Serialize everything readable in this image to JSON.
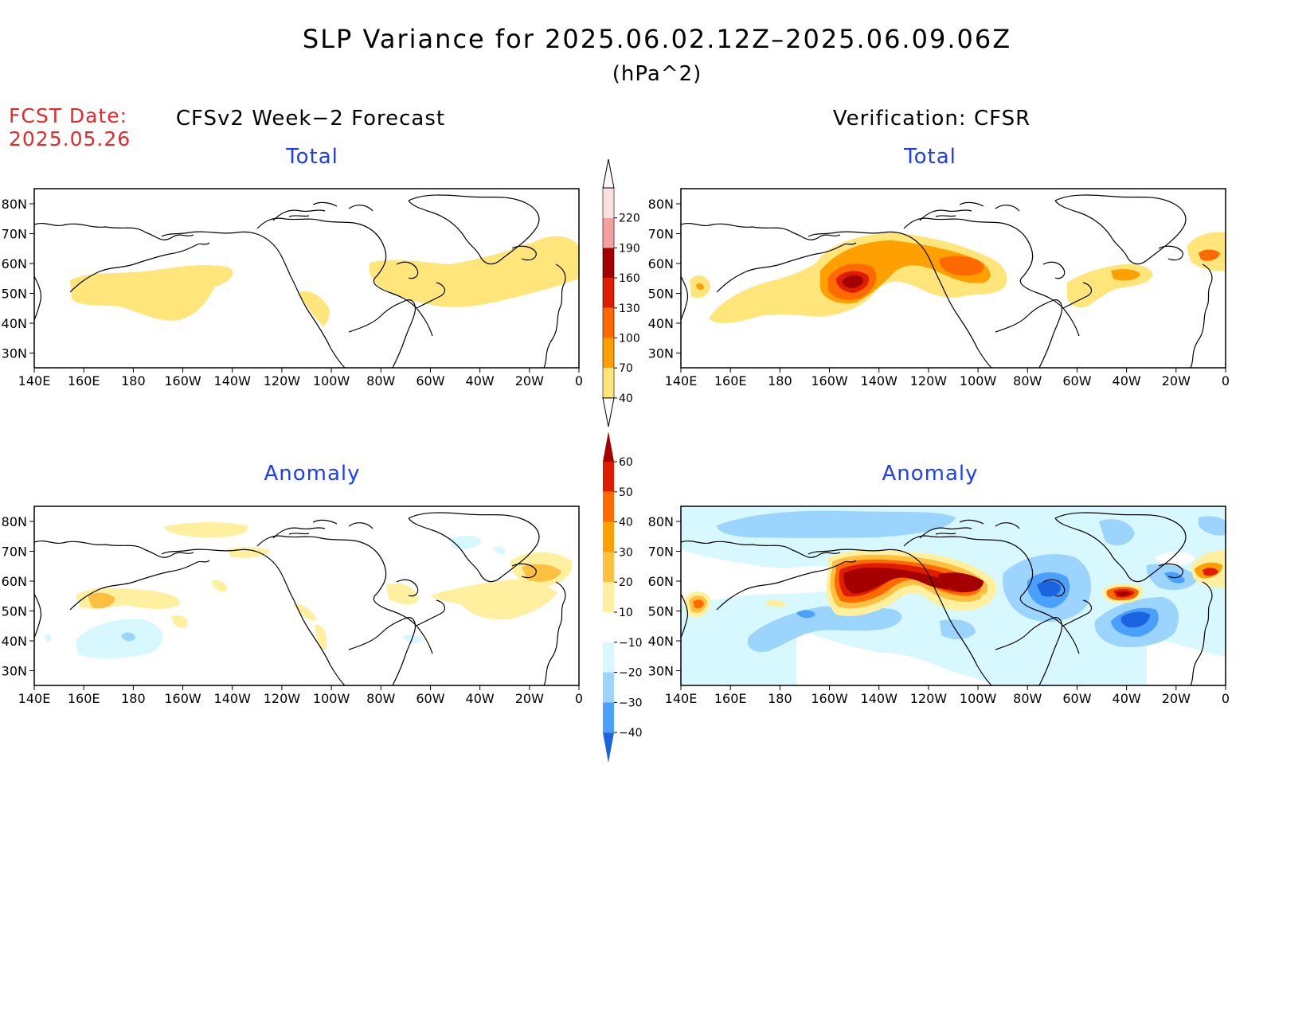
{
  "header": {
    "title": "SLP Variance for 2025.06.02.12Z–2025.06.09.06Z",
    "units": "(hPa^2)",
    "fcst_label": "FCST Date:",
    "fcst_date": "2025.05.26"
  },
  "columns": {
    "left": "CFSv2 Week−2 Forecast",
    "right": "Verification: CFSR"
  },
  "panels": {
    "forecast_total": "Total",
    "verification_total": "Total",
    "forecast_anomaly": "Anomaly",
    "verification_anomaly": "Anomaly"
  },
  "axes": {
    "lon_labels": [
      "140E",
      "160E",
      "180",
      "160W",
      "140W",
      "120W",
      "100W",
      "80W",
      "60W",
      "40W",
      "20W",
      "0"
    ],
    "lat_labels": [
      "80N",
      "70N",
      "60N",
      "50N",
      "40N",
      "30N"
    ]
  },
  "colorbars": {
    "total": {
      "levels": [
        "40",
        "70",
        "100",
        "130",
        "160",
        "190",
        "220"
      ],
      "colors": [
        "#ffe57a",
        "#ffa000",
        "#ff6a00",
        "#e01c00",
        "#a50000",
        "#f4a0a0",
        "#fde0e0"
      ]
    },
    "anomaly": {
      "levels": [
        "60",
        "50",
        "40",
        "30",
        "20",
        "10",
        "−10",
        "−20",
        "−30",
        "−40"
      ],
      "colors_pos": [
        "#fff0a0",
        "#ffc040",
        "#ffa000",
        "#ff6a00",
        "#e01c00",
        "#a50000"
      ],
      "colors_neg": [
        "#d8f8ff",
        "#9ad4ff",
        "#4aa0ff",
        "#1a64e0",
        "#0a3cb4"
      ]
    }
  }
}
